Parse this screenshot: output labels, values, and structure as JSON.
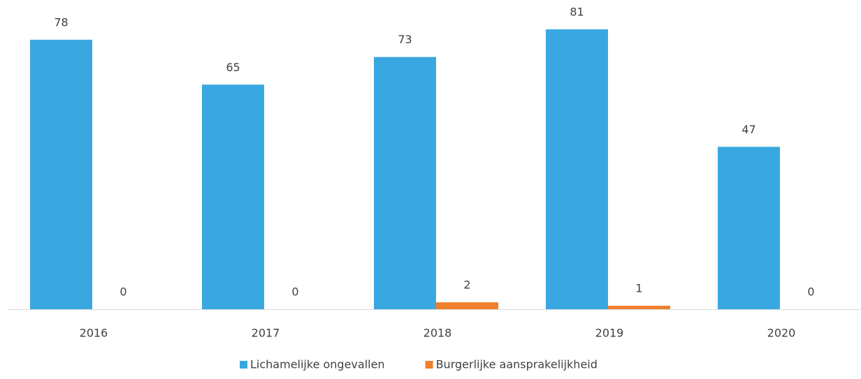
{
  "chart_data": {
    "type": "bar",
    "categories": [
      "2016",
      "2017",
      "2018",
      "2019",
      "2020"
    ],
    "series": [
      {
        "name": "Lichamelijke ongevallen",
        "color": "#3aa8e0",
        "values": [
          78,
          65,
          73,
          81,
          47
        ]
      },
      {
        "name": "Burgerlijke aansprakelijkheid",
        "color": "#f07f2c",
        "values": [
          0,
          0,
          2,
          1,
          0
        ]
      }
    ],
    "ylim": [
      0,
      88
    ],
    "legend": "bottom"
  }
}
